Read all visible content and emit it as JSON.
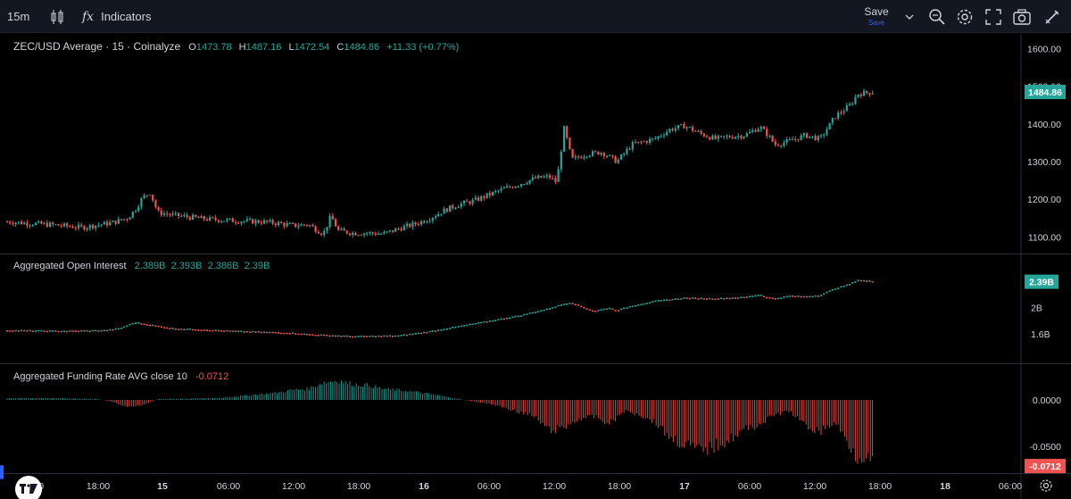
{
  "toolbar": {
    "interval": "15m",
    "indicators_label": "Indicators",
    "save_label": "Save",
    "save_sub": "Save"
  },
  "panes": {
    "price": {
      "title": "ZEC/USD Average · 15 · Coinalyze",
      "o_label": "O",
      "o_value": "1473.78",
      "h_label": "H",
      "h_value": "1487.16",
      "l_label": "L",
      "l_value": "1472.54",
      "c_label": "C",
      "c_value": "1484.86",
      "change": "+11.33 (+0.77%)",
      "last_price_tag": "1484.86"
    },
    "oi": {
      "title": "Aggregated Open Interest",
      "values": "2.389B  2.393B  2.386B  2.39B",
      "last_tag": "2.39B"
    },
    "funding": {
      "title": "Aggregated Funding Rate AVG close 10",
      "value": "-0.0712",
      "last_tag": "-0.0712"
    }
  },
  "colors": {
    "up": "#26a69a",
    "down": "#ef5350",
    "background": "#000000",
    "toolbar": "#131722",
    "grid": "#2a2e39",
    "text": "#d1d4dc",
    "accent": "#2962ff"
  },
  "icons": [
    "candles-icon",
    "indicators-fx-icon",
    "chevron-down-icon",
    "search-zoom-icon",
    "gear-icon",
    "fullscreen-icon",
    "camera-icon",
    "pencil-icon",
    "tradingview-logo",
    "settings-gear-icon"
  ],
  "chart_data": [
    {
      "type": "candlestick",
      "title": "ZEC/USD Average · 15 · Coinalyze",
      "y_ticks": [
        "1100.00",
        "1200.00",
        "1300.00",
        "1400.00",
        "1500.00",
        "1600.00"
      ],
      "ylim": [
        1070,
        1620
      ],
      "x_ticks": [
        "12:00",
        "18:00",
        "15",
        "06:00",
        "12:00",
        "18:00",
        "16",
        "06:00",
        "12:00",
        "18:00",
        "17",
        "06:00",
        "12:00",
        "18:00",
        "18",
        "06:00"
      ],
      "close_path": [
        [
          0,
          1140
        ],
        [
          6,
          1132
        ],
        [
          10,
          1125
        ],
        [
          14,
          1138
        ],
        [
          16,
          1150
        ],
        [
          17,
          1172
        ],
        [
          18,
          1205
        ],
        [
          19,
          1218
        ],
        [
          20,
          1165
        ],
        [
          22,
          1158
        ],
        [
          26,
          1148
        ],
        [
          30,
          1143
        ],
        [
          34,
          1140
        ],
        [
          36,
          1136
        ],
        [
          38,
          1130
        ],
        [
          40,
          1133
        ],
        [
          41,
          1120
        ],
        [
          42,
          1108
        ],
        [
          43,
          1155
        ],
        [
          44,
          1116
        ],
        [
          46,
          1110
        ],
        [
          48,
          1110
        ],
        [
          50,
          1108
        ],
        [
          52,
          1122
        ],
        [
          54,
          1133
        ],
        [
          56,
          1148
        ],
        [
          58,
          1170
        ],
        [
          60,
          1186
        ],
        [
          62,
          1196
        ],
        [
          64,
          1212
        ],
        [
          66,
          1228
        ],
        [
          68,
          1240
        ],
        [
          70,
          1255
        ],
        [
          72,
          1260
        ],
        [
          73,
          1245
        ],
        [
          74,
          1390
        ],
        [
          75,
          1305
        ],
        [
          77,
          1320
        ],
        [
          79,
          1325
        ],
        [
          81,
          1300
        ],
        [
          83,
          1345
        ],
        [
          86,
          1360
        ],
        [
          88,
          1385
        ],
        [
          90,
          1395
        ],
        [
          92,
          1375
        ],
        [
          94,
          1360
        ],
        [
          96,
          1366
        ],
        [
          98,
          1370
        ],
        [
          100,
          1392
        ],
        [
          101,
          1372
        ],
        [
          102,
          1345
        ],
        [
          104,
          1355
        ],
        [
          106,
          1370
        ],
        [
          108,
          1360
        ],
        [
          110,
          1420
        ],
        [
          112,
          1450
        ],
        [
          113,
          1480
        ],
        [
          115,
          1484.86
        ]
      ],
      "last_price": 1484.86
    },
    {
      "type": "line",
      "title": "Aggregated Open Interest",
      "y_ticks": [
        "1.6B",
        "2B"
      ],
      "ylim": [
        1.28,
        2.6
      ],
      "x": [
        0,
        8,
        13,
        15,
        17,
        22,
        30,
        38,
        40,
        46,
        52,
        56,
        60,
        64,
        68,
        72,
        74,
        75,
        78,
        80,
        81,
        83,
        86,
        90,
        94,
        98,
        100,
        101,
        102,
        104,
        106,
        108,
        110,
        112,
        113,
        115
      ],
      "values": [
        1.65,
        1.64,
        1.65,
        1.68,
        1.77,
        1.68,
        1.64,
        1.61,
        1.59,
        1.56,
        1.57,
        1.63,
        1.71,
        1.79,
        1.87,
        1.98,
        2.05,
        2.07,
        1.94,
        1.99,
        1.95,
        2.02,
        2.09,
        2.14,
        2.13,
        2.15,
        2.19,
        2.15,
        2.13,
        2.17,
        2.16,
        2.18,
        2.28,
        2.35,
        2.41,
        2.39
      ],
      "last_value": 2.39
    },
    {
      "type": "bar",
      "title": "Aggregated Funding Rate AVG close 10",
      "y_ticks": [
        "0.0000",
        "-0.0500"
      ],
      "ylim": [
        -0.075,
        0.025
      ],
      "x": [
        0,
        6,
        12,
        14,
        16,
        18,
        20,
        28,
        36,
        38,
        40,
        42,
        44,
        46,
        48,
        50,
        54,
        58,
        62,
        64,
        66,
        70,
        72,
        74,
        76,
        78,
        80,
        82,
        84,
        86,
        88,
        90,
        92,
        94,
        96,
        98,
        100,
        102,
        104,
        106,
        108,
        110,
        112,
        113,
        114,
        115
      ],
      "values": [
        0.002,
        0.002,
        0.001,
        -0.002,
        -0.008,
        -0.006,
        0.001,
        0.002,
        0.008,
        0.011,
        0.012,
        0.019,
        0.021,
        0.017,
        0.016,
        0.012,
        0.009,
        0.004,
        -0.002,
        -0.004,
        -0.008,
        -0.018,
        -0.033,
        -0.03,
        -0.02,
        -0.018,
        -0.026,
        -0.012,
        -0.016,
        -0.023,
        -0.04,
        -0.048,
        -0.055,
        -0.05,
        -0.042,
        -0.032,
        -0.026,
        -0.016,
        -0.012,
        -0.028,
        -0.034,
        -0.024,
        -0.05,
        -0.062,
        -0.058,
        -0.0712
      ],
      "last_value": -0.0712
    }
  ]
}
